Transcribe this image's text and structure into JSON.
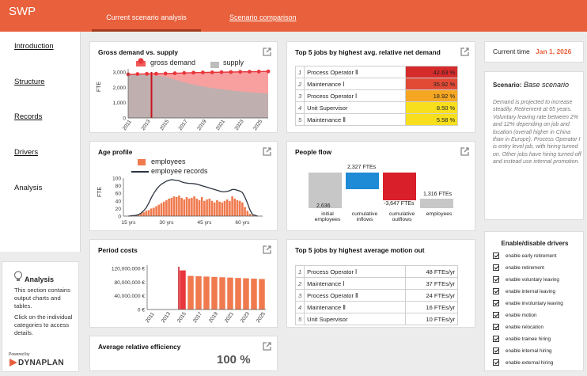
{
  "app": {
    "title": "SWP"
  },
  "tabs": [
    {
      "label": "Current scenario analysis"
    },
    {
      "label": "Scenario comparison"
    }
  ],
  "sidebar": {
    "items": [
      "Introduction",
      "Structure",
      "Records",
      "Drivers",
      "Analysis"
    ]
  },
  "info": {
    "title": "Analysis",
    "p1": "This section contains output charts and tables.",
    "p2": "Click on the individual categories to access details.",
    "powered": "Powered by",
    "brand": "DYNAPLAN"
  },
  "gross": {
    "title": "Gross demand vs. supply",
    "legend_demand": "gross demand",
    "legend_supply": "supply",
    "ylabel": "FTE"
  },
  "age": {
    "title": "Age profile",
    "legend_emp": "employees",
    "legend_rec": "employee records",
    "ylabel": "FTE"
  },
  "period": {
    "title": "Period costs"
  },
  "eff": {
    "title": "Average relative efficiency",
    "value": "100 %"
  },
  "top5demand": {
    "title": "Top 5 jobs by highest avg. relative net demand",
    "rows": [
      {
        "n": "1",
        "job": "Process Operator Ⅱ",
        "val": "42.63 %",
        "color": "#d62b2b"
      },
      {
        "n": "2",
        "job": "Maintenance Ⅰ",
        "val": "35.92 %",
        "color": "#e24a36"
      },
      {
        "n": "3",
        "job": "Process Operator Ⅰ",
        "val": "18.92 %",
        "color": "#f5a623"
      },
      {
        "n": "4",
        "job": "Unit Supervisor",
        "val": "8.50 %",
        "color": "#f7df1e"
      },
      {
        "n": "5",
        "job": "Maintenance Ⅱ",
        "val": "5.58 %",
        "color": "#f7df1e"
      }
    ]
  },
  "flow": {
    "title": "People flow",
    "bars": [
      {
        "label": "initial employees",
        "value": "2,636",
        "color": "#c7c7c7"
      },
      {
        "label": "cumulative inflows",
        "value": "2,327 FTEs",
        "color": "#1f8ad6"
      },
      {
        "label": "cumulative outflows",
        "value": "-3,647 FTEs",
        "color": "#d81f2a"
      },
      {
        "label": "employees",
        "value": "1,316 FTEs",
        "color": "#c7c7c7"
      }
    ]
  },
  "top5motion": {
    "title": "Top 5 jobs by highest average motion out",
    "rows": [
      {
        "n": "1",
        "job": "Process Operator Ⅰ",
        "val": "48 FTEs/yr"
      },
      {
        "n": "2",
        "job": "Maintenance Ⅰ",
        "val": "37 FTEs/yr"
      },
      {
        "n": "3",
        "job": "Process Operator Ⅱ",
        "val": "24 FTEs/yr"
      },
      {
        "n": "4",
        "job": "Maintenance Ⅱ",
        "val": "16 FTEs/yr"
      },
      {
        "n": "5",
        "job": "Unit Supervisor",
        "val": "10 FTEs/yr"
      }
    ]
  },
  "current_time": {
    "label": "Current time",
    "value": "Jan 1, 2026"
  },
  "scenario": {
    "label": "Scenario:",
    "name": "Base scenario",
    "desc": "Demand is projected to increase steadily. Retirement at 65 years. Voluntary leaving rate between 2% and 12% depending on job and location (overall higher in China than in Europe). Process Operator Ⅰ is entry level job, with hiring turned on. Other jobs have hiring turned off and instead use internal promotion."
  },
  "drivers": {
    "title": "Enable/disable drivers",
    "items": [
      "enable early retirement",
      "enable retirement",
      "enable voluntary leaving",
      "enable internal leaving",
      "enable involuntary leaving",
      "enable motion",
      "enable relocation",
      "enable trainee hiring",
      "enable internal hiring",
      "enable external hiring"
    ]
  },
  "colors": {
    "accent": "#e8603c",
    "date": "#e8603c"
  },
  "chart_data": [
    {
      "type": "area",
      "title": "Gross demand vs. supply",
      "ylabel": "FTE",
      "x": [
        2011,
        2012,
        2013,
        2014,
        2015,
        2016,
        2017,
        2018,
        2019,
        2020,
        2021,
        2022,
        2023,
        2024,
        2025,
        2026
      ],
      "series": [
        {
          "name": "gross demand",
          "values": [
            2850,
            2870,
            2880,
            2890,
            2900,
            2920,
            2940,
            2960,
            2970,
            2980,
            2990,
            3000,
            3010,
            3020,
            3030,
            3040
          ]
        },
        {
          "name": "supply",
          "values": [
            2850,
            2830,
            2800,
            2760,
            2700,
            2500,
            2320,
            2180,
            2060,
            1960,
            1880,
            1800,
            1740,
            1680,
            1630,
            1590
          ]
        }
      ],
      "ylim": [
        0,
        3000
      ],
      "yticks": [
        "0",
        "1,000",
        "2,000",
        "3,000"
      ],
      "xticks": [
        "2011",
        "2013",
        "2015",
        "2017",
        "2019",
        "2021",
        "2023",
        "2025"
      ],
      "marker_year": 2013.5
    },
    {
      "type": "bar",
      "title": "Age profile",
      "ylabel": "FTE",
      "xticks": [
        "15 yrs",
        "30 yrs",
        "45 yrs",
        "60 yrs"
      ],
      "yticks": [
        "0",
        "20",
        "40",
        "60",
        "80",
        "100"
      ],
      "ylim": [
        0,
        100
      ],
      "x": [
        18,
        19,
        20,
        21,
        22,
        23,
        24,
        25,
        26,
        27,
        28,
        29,
        30,
        31,
        32,
        33,
        34,
        35,
        36,
        37,
        38,
        39,
        40,
        41,
        42,
        43,
        44,
        45,
        46,
        47,
        48,
        49,
        50,
        51,
        52,
        53,
        54,
        55,
        56,
        57,
        58,
        59,
        60,
        61,
        62,
        63,
        64
      ],
      "series": [
        {
          "name": "employees",
          "values": [
            3,
            5,
            8,
            10,
            14,
            16,
            20,
            22,
            26,
            30,
            34,
            38,
            42,
            46,
            48,
            52,
            50,
            54,
            48,
            44,
            50,
            46,
            48,
            52,
            46,
            42,
            50,
            40,
            44,
            46,
            40,
            36,
            42,
            38,
            36,
            40,
            44,
            40,
            52,
            46,
            42,
            40,
            36,
            24,
            14,
            6,
            2
          ]
        },
        {
          "name": "employee records",
          "values": [
            2,
            4,
            8,
            14,
            22,
            34,
            48,
            60,
            70,
            78,
            84,
            88,
            92,
            94,
            96,
            95,
            94,
            93,
            90,
            88,
            87,
            86,
            86,
            85,
            84,
            82,
            80,
            78,
            76,
            74,
            72,
            70,
            68,
            66,
            64,
            64,
            65,
            67,
            70,
            70,
            68,
            66,
            62,
            50,
            34,
            16,
            4
          ]
        }
      ]
    },
    {
      "type": "bar",
      "title": "Period costs",
      "yticks": [
        "0 €",
        "40,000,000 €",
        "80,000,000 €",
        "120,000,000 €"
      ],
      "ylim": [
        0,
        120000000
      ],
      "xticks": [
        "2011",
        "2013",
        "2015",
        "2017",
        "2019",
        "2021",
        "2023",
        "2025"
      ],
      "categories": [
        "2015",
        "2016",
        "2017",
        "2018",
        "2019",
        "2020",
        "2021",
        "2022",
        "2023",
        "2024",
        "2025"
      ],
      "values": [
        114000000,
        98000000,
        97000000,
        96000000,
        95000000,
        94000000,
        93000000,
        92000000,
        91000000,
        90000000,
        89000000
      ]
    }
  ]
}
